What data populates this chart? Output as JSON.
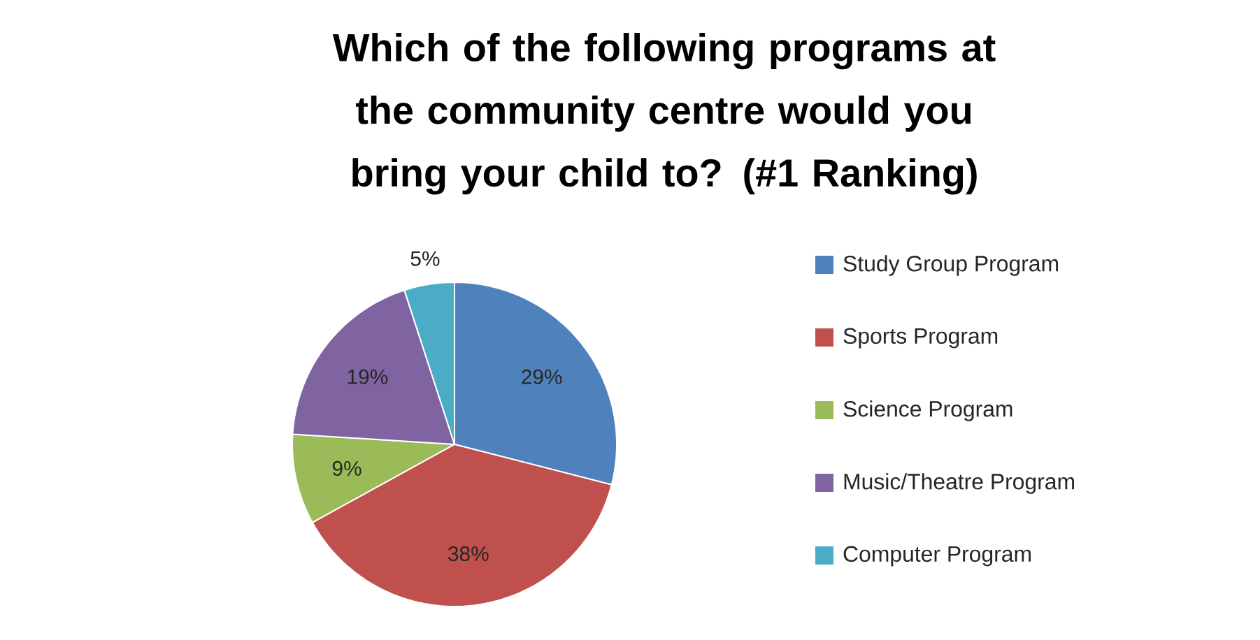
{
  "chart_data": {
    "type": "pie",
    "title": "Which of the following programs at the community centre would you bring your child to? (#1 Ranking)",
    "categories": [
      "Study Group Program",
      "Sports Program",
      "Science Program",
      "Music/Theatre Program",
      "Computer Program"
    ],
    "values": [
      29,
      38,
      9,
      19,
      5
    ],
    "colors": [
      "#4f81bd",
      "#c0504d",
      "#9bbb59",
      "#8064a2",
      "#4bacc6"
    ],
    "value_labels": [
      "29%",
      "38%",
      "9%",
      "19%",
      "5%"
    ],
    "legend": "right"
  }
}
